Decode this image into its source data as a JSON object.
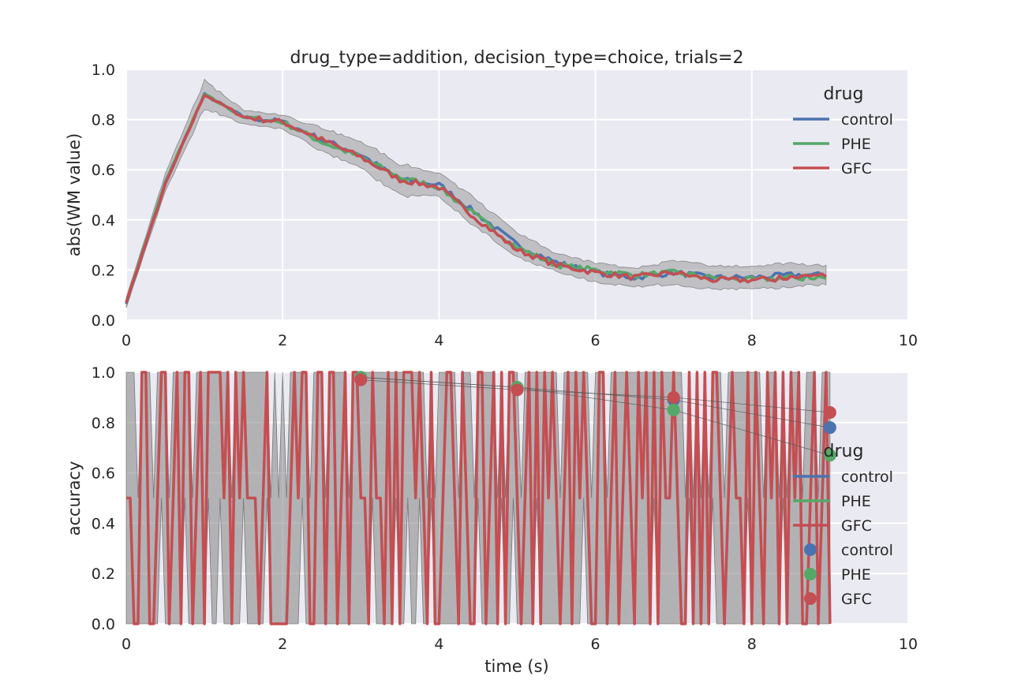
{
  "chart_data": [
    {
      "type": "line",
      "title": "drug_type=addition, decision_type=choice, trials=2",
      "xlabel": "",
      "ylabel": "abs(WM value)",
      "xlim": [
        0,
        10
      ],
      "ylim": [
        0,
        1.0
      ],
      "xticks": [
        "0",
        "2",
        "4",
        "6",
        "8",
        "10"
      ],
      "yticks": [
        "0.0",
        "0.2",
        "0.4",
        "0.6",
        "0.8",
        "1.0"
      ],
      "grid": true,
      "legend": {
        "title": "drug",
        "placement": "top-right",
        "entries": [
          "control",
          "PHE",
          "GFC"
        ]
      },
      "x": [
        0,
        0.5,
        1.0,
        1.5,
        2.0,
        2.5,
        3.0,
        3.5,
        4.0,
        4.5,
        5.0,
        5.5,
        6.0,
        6.5,
        7.0,
        7.5,
        8.0,
        8.5,
        9.0
      ],
      "series": [
        {
          "name": "control",
          "color": "#4c72b0",
          "values": [
            0.07,
            0.55,
            0.9,
            0.81,
            0.79,
            0.72,
            0.66,
            0.56,
            0.54,
            0.42,
            0.3,
            0.23,
            0.19,
            0.17,
            0.19,
            0.17,
            0.17,
            0.18,
            0.18
          ]
        },
        {
          "name": "PHE",
          "color": "#55a868",
          "values": [
            0.07,
            0.55,
            0.9,
            0.81,
            0.79,
            0.71,
            0.65,
            0.57,
            0.53,
            0.41,
            0.29,
            0.22,
            0.2,
            0.18,
            0.19,
            0.17,
            0.16,
            0.17,
            0.17
          ]
        },
        {
          "name": "GFC",
          "color": "#c44e52",
          "values": [
            0.07,
            0.54,
            0.9,
            0.81,
            0.79,
            0.72,
            0.65,
            0.56,
            0.53,
            0.4,
            0.28,
            0.22,
            0.19,
            0.17,
            0.19,
            0.16,
            0.16,
            0.17,
            0.18
          ]
        }
      ],
      "band_halfwidth": [
        0.02,
        0.04,
        0.06,
        0.03,
        0.03,
        0.05,
        0.06,
        0.07,
        0.05,
        0.06,
        0.05,
        0.04,
        0.04,
        0.04,
        0.05,
        0.05,
        0.05,
        0.05,
        0.04
      ]
    },
    {
      "type": "line",
      "title": "",
      "xlabel": "time (s)",
      "ylabel": "accuracy",
      "xlim": [
        0,
        10
      ],
      "ylim": [
        0,
        1.0
      ],
      "xticks": [
        "0",
        "2",
        "4",
        "6",
        "8",
        "10"
      ],
      "yticks": [
        "0.0",
        "0.2",
        "0.4",
        "0.6",
        "0.8",
        "1.0"
      ],
      "grid": true,
      "legend": {
        "title": "drug",
        "placement": "right",
        "entries": [
          "control",
          "PHE",
          "GFC",
          "control",
          "PHE",
          "GFC"
        ]
      },
      "line_dt": 0.05,
      "line_values": [
        0.5,
        0.5,
        0,
        0,
        1,
        1,
        0,
        0,
        0.5,
        1,
        1,
        0,
        0.5,
        1,
        0,
        1,
        1,
        0,
        0.5,
        1,
        0,
        1,
        1,
        1,
        1,
        0.5,
        1,
        0,
        1,
        0.5,
        1,
        0.5,
        0.5,
        0.5,
        0,
        0.5,
        1,
        0,
        0,
        0,
        0,
        0,
        0.5,
        1,
        0.5,
        1,
        1,
        0,
        0,
        1,
        1,
        0,
        1,
        1,
        0,
        0.5,
        1,
        0,
        1,
        1,
        0.5,
        0.5,
        0,
        1,
        0.5,
        0.5,
        0,
        1,
        0,
        1,
        0,
        1,
        1,
        1,
        0.5,
        1,
        0.5,
        0,
        1,
        0,
        0,
        0.5,
        1,
        1,
        0.5,
        0,
        1,
        0.5,
        0,
        0,
        1,
        1,
        0,
        0.5,
        1,
        0,
        1,
        0,
        1,
        1,
        0.5,
        0,
        0.5,
        1,
        0,
        1,
        0,
        1,
        0.5,
        1,
        0.5,
        0,
        0.5,
        1,
        0,
        1,
        0.5,
        1,
        0.5,
        0,
        0,
        1,
        1,
        0,
        0.5,
        1,
        0,
        0.5,
        1,
        0.5,
        0,
        1,
        0.5,
        1,
        0,
        1,
        0,
        1,
        0.5,
        0.5,
        1,
        0.5,
        0,
        0,
        1,
        0,
        1,
        0,
        1,
        0,
        1,
        1,
        0.5,
        0,
        0.5,
        1,
        0.5,
        0.5,
        0,
        1,
        0,
        1,
        0.5,
        0,
        1,
        0.5,
        1,
        0,
        1,
        0,
        1,
        0.5,
        1,
        0,
        0,
        0.5,
        1,
        0,
        0.5,
        1,
        0
      ],
      "points": [
        {
          "name": "control",
          "color": "#4c72b0",
          "x": [
            3,
            5,
            7,
            9
          ],
          "y": [
            0.98,
            0.94,
            0.89,
            0.78
          ]
        },
        {
          "name": "PHE",
          "color": "#55a868",
          "x": [
            3,
            5,
            7,
            9
          ],
          "y": [
            0.98,
            0.94,
            0.85,
            0.67
          ]
        },
        {
          "name": "GFC",
          "color": "#c44e52",
          "x": [
            3,
            5,
            7,
            9
          ],
          "y": [
            0.97,
            0.93,
            0.9,
            0.84
          ]
        }
      ]
    }
  ]
}
